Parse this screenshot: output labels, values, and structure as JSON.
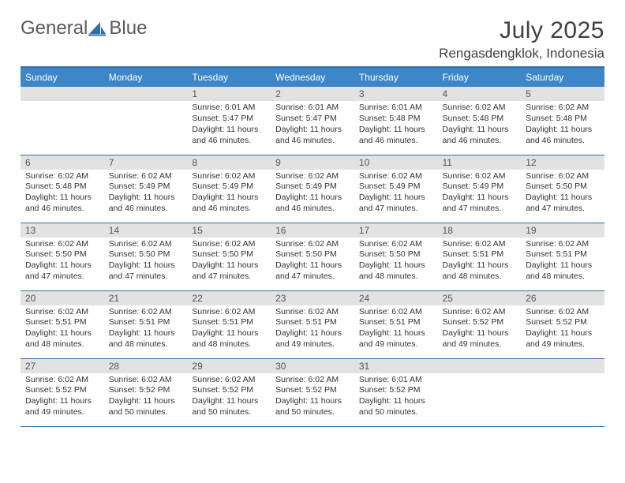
{
  "brand": {
    "part1": "General",
    "part2": "Blue"
  },
  "title": "July 2025",
  "location": "Rengasdengklok, Indonesia",
  "colors": {
    "header_bg": "#3d87c9",
    "header_text": "#ffffff",
    "rule": "#2f6fa8",
    "daynum_bg": "#e2e2e2",
    "body_text": "#333333",
    "logo_gray": "#595959",
    "logo_blue": "#3b7fbf",
    "background": "#ffffff"
  },
  "fonts": {
    "title_size": 30,
    "location_size": 17,
    "weekday_size": 12,
    "daynum_size": 12,
    "body_size": 10.5
  },
  "weekdays": [
    "Sunday",
    "Monday",
    "Tuesday",
    "Wednesday",
    "Thursday",
    "Friday",
    "Saturday"
  ],
  "layout": {
    "first_weekday_index": 2,
    "days_in_month": 31,
    "rows": 5,
    "cols": 7
  },
  "days": {
    "1": {
      "sunrise": "6:01 AM",
      "sunset": "5:47 PM",
      "daylight": "11 hours and 46 minutes."
    },
    "2": {
      "sunrise": "6:01 AM",
      "sunset": "5:47 PM",
      "daylight": "11 hours and 46 minutes."
    },
    "3": {
      "sunrise": "6:01 AM",
      "sunset": "5:48 PM",
      "daylight": "11 hours and 46 minutes."
    },
    "4": {
      "sunrise": "6:02 AM",
      "sunset": "5:48 PM",
      "daylight": "11 hours and 46 minutes."
    },
    "5": {
      "sunrise": "6:02 AM",
      "sunset": "5:48 PM",
      "daylight": "11 hours and 46 minutes."
    },
    "6": {
      "sunrise": "6:02 AM",
      "sunset": "5:48 PM",
      "daylight": "11 hours and 46 minutes."
    },
    "7": {
      "sunrise": "6:02 AM",
      "sunset": "5:49 PM",
      "daylight": "11 hours and 46 minutes."
    },
    "8": {
      "sunrise": "6:02 AM",
      "sunset": "5:49 PM",
      "daylight": "11 hours and 46 minutes."
    },
    "9": {
      "sunrise": "6:02 AM",
      "sunset": "5:49 PM",
      "daylight": "11 hours and 46 minutes."
    },
    "10": {
      "sunrise": "6:02 AM",
      "sunset": "5:49 PM",
      "daylight": "11 hours and 47 minutes."
    },
    "11": {
      "sunrise": "6:02 AM",
      "sunset": "5:49 PM",
      "daylight": "11 hours and 47 minutes."
    },
    "12": {
      "sunrise": "6:02 AM",
      "sunset": "5:50 PM",
      "daylight": "11 hours and 47 minutes."
    },
    "13": {
      "sunrise": "6:02 AM",
      "sunset": "5:50 PM",
      "daylight": "11 hours and 47 minutes."
    },
    "14": {
      "sunrise": "6:02 AM",
      "sunset": "5:50 PM",
      "daylight": "11 hours and 47 minutes."
    },
    "15": {
      "sunrise": "6:02 AM",
      "sunset": "5:50 PM",
      "daylight": "11 hours and 47 minutes."
    },
    "16": {
      "sunrise": "6:02 AM",
      "sunset": "5:50 PM",
      "daylight": "11 hours and 47 minutes."
    },
    "17": {
      "sunrise": "6:02 AM",
      "sunset": "5:50 PM",
      "daylight": "11 hours and 48 minutes."
    },
    "18": {
      "sunrise": "6:02 AM",
      "sunset": "5:51 PM",
      "daylight": "11 hours and 48 minutes."
    },
    "19": {
      "sunrise": "6:02 AM",
      "sunset": "5:51 PM",
      "daylight": "11 hours and 48 minutes."
    },
    "20": {
      "sunrise": "6:02 AM",
      "sunset": "5:51 PM",
      "daylight": "11 hours and 48 minutes."
    },
    "21": {
      "sunrise": "6:02 AM",
      "sunset": "5:51 PM",
      "daylight": "11 hours and 48 minutes."
    },
    "22": {
      "sunrise": "6:02 AM",
      "sunset": "5:51 PM",
      "daylight": "11 hours and 48 minutes."
    },
    "23": {
      "sunrise": "6:02 AM",
      "sunset": "5:51 PM",
      "daylight": "11 hours and 49 minutes."
    },
    "24": {
      "sunrise": "6:02 AM",
      "sunset": "5:51 PM",
      "daylight": "11 hours and 49 minutes."
    },
    "25": {
      "sunrise": "6:02 AM",
      "sunset": "5:52 PM",
      "daylight": "11 hours and 49 minutes."
    },
    "26": {
      "sunrise": "6:02 AM",
      "sunset": "5:52 PM",
      "daylight": "11 hours and 49 minutes."
    },
    "27": {
      "sunrise": "6:02 AM",
      "sunset": "5:52 PM",
      "daylight": "11 hours and 49 minutes."
    },
    "28": {
      "sunrise": "6:02 AM",
      "sunset": "5:52 PM",
      "daylight": "11 hours and 50 minutes."
    },
    "29": {
      "sunrise": "6:02 AM",
      "sunset": "5:52 PM",
      "daylight": "11 hours and 50 minutes."
    },
    "30": {
      "sunrise": "6:02 AM",
      "sunset": "5:52 PM",
      "daylight": "11 hours and 50 minutes."
    },
    "31": {
      "sunrise": "6:01 AM",
      "sunset": "5:52 PM",
      "daylight": "11 hours and 50 minutes."
    }
  },
  "labels": {
    "sunrise_prefix": "Sunrise: ",
    "sunset_prefix": "Sunset: ",
    "daylight_prefix": "Daylight: "
  }
}
